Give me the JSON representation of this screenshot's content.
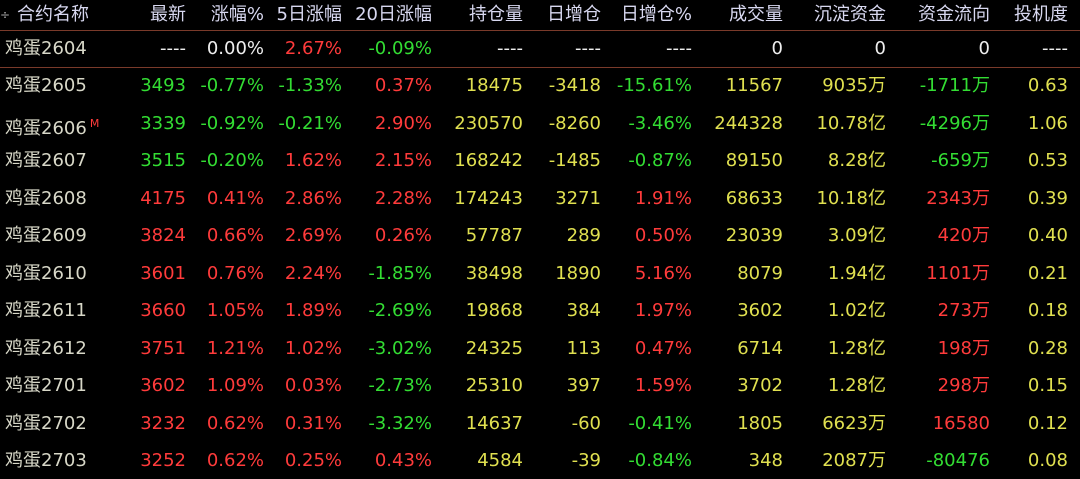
{
  "table": {
    "header": [
      "合约名称",
      "最新",
      "涨幅%",
      "5日涨幅",
      "20日涨幅",
      "持仓量",
      "日增仓",
      "日增仓%",
      "成交量",
      "沉淀资金",
      "资金流向",
      "投机度"
    ],
    "rows": [
      {
        "cells": [
          "鸡蛋2604",
          "----",
          "0.00%",
          "2.67%",
          "-0.09%",
          "----",
          "----",
          "----",
          "0",
          "0",
          "0",
          "----"
        ]
      },
      {
        "cells": [
          "鸡蛋2605",
          "3493",
          "-0.77%",
          "-1.33%",
          "0.37%",
          "18475",
          "-3418",
          "-15.61%",
          "11567",
          "9035万",
          "-1711万",
          "0.63"
        ]
      },
      {
        "cells": [
          "鸡蛋2606",
          "3339",
          "-0.92%",
          "-0.21%",
          "2.90%",
          "230570",
          "-8260",
          "-3.46%",
          "244328",
          "10.78亿",
          "-4296万",
          "1.06"
        ],
        "badge": "M"
      },
      {
        "cells": [
          "鸡蛋2607",
          "3515",
          "-0.20%",
          "1.62%",
          "2.15%",
          "168242",
          "-1485",
          "-0.87%",
          "89150",
          "8.28亿",
          "-659万",
          "0.53"
        ]
      },
      {
        "cells": [
          "鸡蛋2608",
          "4175",
          "0.41%",
          "2.86%",
          "2.28%",
          "174243",
          "3271",
          "1.91%",
          "68633",
          "10.18亿",
          "2343万",
          "0.39"
        ]
      },
      {
        "cells": [
          "鸡蛋2609",
          "3824",
          "0.66%",
          "2.69%",
          "0.26%",
          "57787",
          "289",
          "0.50%",
          "23039",
          "3.09亿",
          "420万",
          "0.40"
        ]
      },
      {
        "cells": [
          "鸡蛋2610",
          "3601",
          "0.76%",
          "2.24%",
          "-1.85%",
          "38498",
          "1890",
          "5.16%",
          "8079",
          "1.94亿",
          "1101万",
          "0.21"
        ]
      },
      {
        "cells": [
          "鸡蛋2611",
          "3660",
          "1.05%",
          "1.89%",
          "-2.69%",
          "19868",
          "384",
          "1.97%",
          "3602",
          "1.02亿",
          "273万",
          "0.18"
        ]
      },
      {
        "cells": [
          "鸡蛋2612",
          "3751",
          "1.21%",
          "1.02%",
          "-3.02%",
          "24325",
          "113",
          "0.47%",
          "6714",
          "1.28亿",
          "198万",
          "0.28"
        ]
      },
      {
        "cells": [
          "鸡蛋2701",
          "3602",
          "1.09%",
          "0.03%",
          "-2.73%",
          "25310",
          "397",
          "1.59%",
          "3702",
          "1.28亿",
          "298万",
          "0.15"
        ]
      },
      {
        "cells": [
          "鸡蛋2702",
          "3232",
          "0.62%",
          "0.31%",
          "-3.32%",
          "14637",
          "-60",
          "-0.41%",
          "1805",
          "6623万",
          "16580",
          "0.12"
        ]
      },
      {
        "cells": [
          "鸡蛋2703",
          "3252",
          "0.62%",
          "0.25%",
          "0.43%",
          "4584",
          "-39",
          "-0.84%",
          "348",
          "2087万",
          "-80476",
          "0.08"
        ]
      }
    ]
  }
}
